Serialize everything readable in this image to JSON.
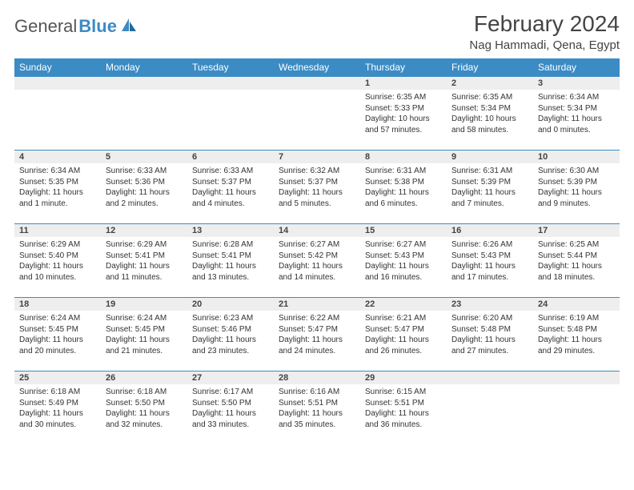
{
  "logo": {
    "part1": "General",
    "part2": "Blue"
  },
  "title": "February 2024",
  "location": "Nag Hammadi, Qena, Egypt",
  "colors": {
    "header_bg": "#3b8bc4",
    "header_text": "#ffffff",
    "daynum_bg": "#eeeeee",
    "border": "#3b8bc4",
    "text": "#333333"
  },
  "daysOfWeek": [
    "Sunday",
    "Monday",
    "Tuesday",
    "Wednesday",
    "Thursday",
    "Friday",
    "Saturday"
  ],
  "firstDayOffset": 4,
  "cells": [
    {
      "n": 1,
      "sunrise": "6:35 AM",
      "sunset": "5:33 PM",
      "daylight": "10 hours and 57 minutes."
    },
    {
      "n": 2,
      "sunrise": "6:35 AM",
      "sunset": "5:34 PM",
      "daylight": "10 hours and 58 minutes."
    },
    {
      "n": 3,
      "sunrise": "6:34 AM",
      "sunset": "5:34 PM",
      "daylight": "11 hours and 0 minutes."
    },
    {
      "n": 4,
      "sunrise": "6:34 AM",
      "sunset": "5:35 PM",
      "daylight": "11 hours and 1 minute."
    },
    {
      "n": 5,
      "sunrise": "6:33 AM",
      "sunset": "5:36 PM",
      "daylight": "11 hours and 2 minutes."
    },
    {
      "n": 6,
      "sunrise": "6:33 AM",
      "sunset": "5:37 PM",
      "daylight": "11 hours and 4 minutes."
    },
    {
      "n": 7,
      "sunrise": "6:32 AM",
      "sunset": "5:37 PM",
      "daylight": "11 hours and 5 minutes."
    },
    {
      "n": 8,
      "sunrise": "6:31 AM",
      "sunset": "5:38 PM",
      "daylight": "11 hours and 6 minutes."
    },
    {
      "n": 9,
      "sunrise": "6:31 AM",
      "sunset": "5:39 PM",
      "daylight": "11 hours and 7 minutes."
    },
    {
      "n": 10,
      "sunrise": "6:30 AM",
      "sunset": "5:39 PM",
      "daylight": "11 hours and 9 minutes."
    },
    {
      "n": 11,
      "sunrise": "6:29 AM",
      "sunset": "5:40 PM",
      "daylight": "11 hours and 10 minutes."
    },
    {
      "n": 12,
      "sunrise": "6:29 AM",
      "sunset": "5:41 PM",
      "daylight": "11 hours and 11 minutes."
    },
    {
      "n": 13,
      "sunrise": "6:28 AM",
      "sunset": "5:41 PM",
      "daylight": "11 hours and 13 minutes."
    },
    {
      "n": 14,
      "sunrise": "6:27 AM",
      "sunset": "5:42 PM",
      "daylight": "11 hours and 14 minutes."
    },
    {
      "n": 15,
      "sunrise": "6:27 AM",
      "sunset": "5:43 PM",
      "daylight": "11 hours and 16 minutes."
    },
    {
      "n": 16,
      "sunrise": "6:26 AM",
      "sunset": "5:43 PM",
      "daylight": "11 hours and 17 minutes."
    },
    {
      "n": 17,
      "sunrise": "6:25 AM",
      "sunset": "5:44 PM",
      "daylight": "11 hours and 18 minutes."
    },
    {
      "n": 18,
      "sunrise": "6:24 AM",
      "sunset": "5:45 PM",
      "daylight": "11 hours and 20 minutes."
    },
    {
      "n": 19,
      "sunrise": "6:24 AM",
      "sunset": "5:45 PM",
      "daylight": "11 hours and 21 minutes."
    },
    {
      "n": 20,
      "sunrise": "6:23 AM",
      "sunset": "5:46 PM",
      "daylight": "11 hours and 23 minutes."
    },
    {
      "n": 21,
      "sunrise": "6:22 AM",
      "sunset": "5:47 PM",
      "daylight": "11 hours and 24 minutes."
    },
    {
      "n": 22,
      "sunrise": "6:21 AM",
      "sunset": "5:47 PM",
      "daylight": "11 hours and 26 minutes."
    },
    {
      "n": 23,
      "sunrise": "6:20 AM",
      "sunset": "5:48 PM",
      "daylight": "11 hours and 27 minutes."
    },
    {
      "n": 24,
      "sunrise": "6:19 AM",
      "sunset": "5:48 PM",
      "daylight": "11 hours and 29 minutes."
    },
    {
      "n": 25,
      "sunrise": "6:18 AM",
      "sunset": "5:49 PM",
      "daylight": "11 hours and 30 minutes."
    },
    {
      "n": 26,
      "sunrise": "6:18 AM",
      "sunset": "5:50 PM",
      "daylight": "11 hours and 32 minutes."
    },
    {
      "n": 27,
      "sunrise": "6:17 AM",
      "sunset": "5:50 PM",
      "daylight": "11 hours and 33 minutes."
    },
    {
      "n": 28,
      "sunrise": "6:16 AM",
      "sunset": "5:51 PM",
      "daylight": "11 hours and 35 minutes."
    },
    {
      "n": 29,
      "sunrise": "6:15 AM",
      "sunset": "5:51 PM",
      "daylight": "11 hours and 36 minutes."
    }
  ],
  "labels": {
    "sunrise": "Sunrise:",
    "sunset": "Sunset:",
    "daylight": "Daylight:"
  }
}
